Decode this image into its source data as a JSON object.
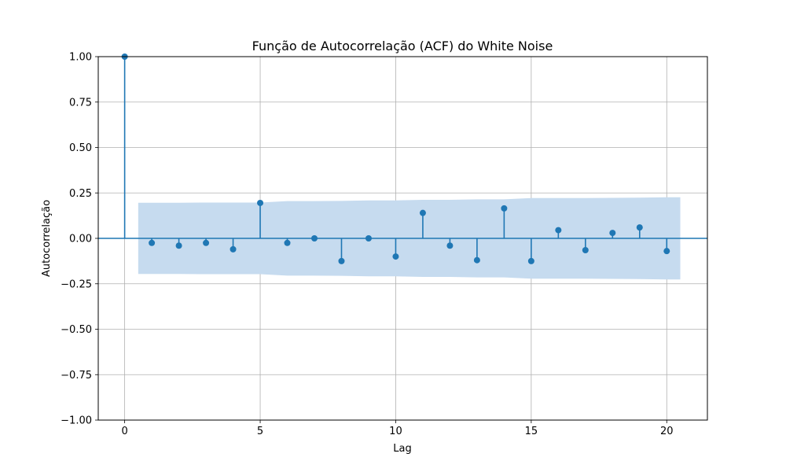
{
  "chart_data": {
    "type": "scatter",
    "subtype": "stem",
    "title": "Função de Autocorrelação (ACF) do White Noise",
    "xlabel": "Lag",
    "ylabel": "Autocorrelação",
    "xlim": [
      -0.975,
      21.5
    ],
    "ylim": [
      -1.0,
      1.0
    ],
    "x_ticks": [
      0,
      5,
      10,
      15,
      20
    ],
    "x_tick_labels": [
      "0",
      "5",
      "10",
      "15",
      "20"
    ],
    "y_ticks": [
      -1.0,
      -0.75,
      -0.5,
      -0.25,
      0.0,
      0.25,
      0.5,
      0.75,
      1.0
    ],
    "y_tick_labels": [
      "−1.00",
      "−0.75",
      "−0.50",
      "−0.25",
      "0.00",
      "0.25",
      "0.50",
      "0.75",
      "1.00"
    ],
    "grid": true,
    "legend": "none",
    "series": [
      {
        "x": [
          0,
          1,
          2,
          3,
          4,
          5,
          6,
          7,
          8,
          9,
          10,
          11,
          12,
          13,
          14,
          15,
          16,
          17,
          18,
          19,
          20
        ],
        "values": [
          1.0,
          -0.025,
          -0.04,
          -0.025,
          -0.06,
          0.195,
          -0.025,
          0.0,
          -0.125,
          0.0,
          -0.1,
          0.14,
          -0.04,
          -0.12,
          0.165,
          -0.125,
          0.045,
          -0.065,
          0.03,
          0.06,
          -0.07
        ]
      }
    ],
    "confidence_band": {
      "x": [
        0.5,
        1,
        2,
        3,
        4,
        5,
        6,
        7,
        8,
        9,
        10,
        11,
        12,
        13,
        14,
        15,
        16,
        17,
        18,
        19,
        20,
        20.5
      ],
      "upper": [
        0.196,
        0.196,
        0.196,
        0.197,
        0.197,
        0.197,
        0.205,
        0.205,
        0.206,
        0.209,
        0.209,
        0.212,
        0.212,
        0.215,
        0.215,
        0.222,
        0.222,
        0.222,
        0.223,
        0.224,
        0.226,
        0.226
      ],
      "lower": [
        -0.196,
        -0.196,
        -0.196,
        -0.197,
        -0.197,
        -0.197,
        -0.205,
        -0.205,
        -0.206,
        -0.209,
        -0.209,
        -0.212,
        -0.212,
        -0.215,
        -0.215,
        -0.222,
        -0.222,
        -0.222,
        -0.223,
        -0.224,
        -0.226,
        -0.226
      ]
    },
    "colors": {
      "stem": "#1f77b4",
      "marker": "#1f77b4",
      "band": "#c6dbef",
      "grid": "#b0b0b0",
      "zero_line": "#1f77b4"
    }
  }
}
